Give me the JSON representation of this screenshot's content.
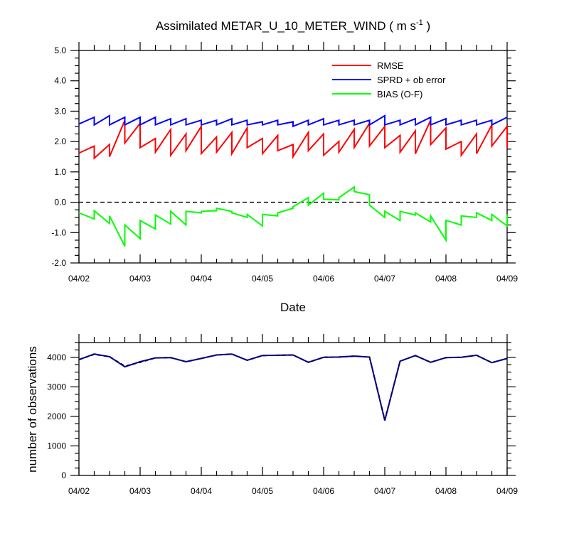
{
  "chart_data": [
    {
      "type": "line",
      "title": "Assimilated METAR_U_10_METER_WIND ( m s",
      "title_sup": "-1",
      "title_end": " )",
      "xlabel": "Date",
      "ylabel": "",
      "x_ticks": [
        "04/02",
        "04/03",
        "04/04",
        "04/05",
        "04/06",
        "04/07",
        "04/08",
        "04/09"
      ],
      "xlim": [
        0,
        7
      ],
      "ylim": [
        -2.0,
        5.0
      ],
      "y_ticks": [
        "-2.0",
        "-1.0",
        "0.0",
        "1.0",
        "2.0",
        "3.0",
        "4.0",
        "5.0"
      ],
      "zero_line": true,
      "legend_position": "top-right",
      "series": [
        {
          "name": "RMSE",
          "color": "#ff0000",
          "points": [
            [
              0,
              1.62
            ],
            [
              0.25,
              1.85
            ],
            [
              0.25,
              1.45
            ],
            [
              0.5,
              1.9
            ],
            [
              0.5,
              1.5
            ],
            [
              0.75,
              2.7
            ],
            [
              0.75,
              1.95
            ],
            [
              1,
              2.6
            ],
            [
              1,
              1.8
            ],
            [
              1.25,
              2.1
            ],
            [
              1.25,
              1.65
            ],
            [
              1.5,
              2.4
            ],
            [
              1.5,
              1.55
            ],
            [
              1.75,
              2.25
            ],
            [
              1.75,
              1.7
            ],
            [
              2,
              2.5
            ],
            [
              2,
              1.6
            ],
            [
              2.25,
              2.15
            ],
            [
              2.25,
              1.65
            ],
            [
              2.5,
              2.3
            ],
            [
              2.5,
              1.6
            ],
            [
              2.75,
              2.45
            ],
            [
              2.75,
              1.8
            ],
            [
              3,
              2.1
            ],
            [
              3,
              1.6
            ],
            [
              3.25,
              2.2
            ],
            [
              3.25,
              1.7
            ],
            [
              3.5,
              1.9
            ],
            [
              3.5,
              1.5
            ],
            [
              3.75,
              2.3
            ],
            [
              3.75,
              1.7
            ],
            [
              4,
              2.25
            ],
            [
              4,
              1.55
            ],
            [
              4.25,
              2.0
            ],
            [
              4.25,
              1.65
            ],
            [
              4.5,
              2.4
            ],
            [
              4.5,
              1.8
            ],
            [
              4.75,
              2.6
            ],
            [
              4.75,
              1.85
            ],
            [
              5,
              2.5
            ],
            [
              5,
              1.8
            ],
            [
              5.25,
              2.2
            ],
            [
              5.25,
              1.65
            ],
            [
              5.5,
              2.35
            ],
            [
              5.5,
              1.6
            ],
            [
              5.75,
              2.7
            ],
            [
              5.75,
              1.9
            ],
            [
              6,
              2.45
            ],
            [
              6,
              1.75
            ],
            [
              6.25,
              2.0
            ],
            [
              6.25,
              1.55
            ],
            [
              6.5,
              2.25
            ],
            [
              6.5,
              1.6
            ],
            [
              6.75,
              2.55
            ],
            [
              6.75,
              1.85
            ],
            [
              7,
              2.5
            ],
            [
              7,
              1.8
            ]
          ]
        },
        {
          "name": "SPRD + ob error",
          "color": "#0000ff",
          "points": [
            [
              0,
              2.58
            ],
            [
              0.25,
              2.8
            ],
            [
              0.25,
              2.55
            ],
            [
              0.5,
              2.85
            ],
            [
              0.5,
              2.55
            ],
            [
              0.75,
              2.8
            ],
            [
              0.75,
              2.55
            ],
            [
              1,
              2.8
            ],
            [
              1,
              2.55
            ],
            [
              1.25,
              2.8
            ],
            [
              1.25,
              2.55
            ],
            [
              1.5,
              2.75
            ],
            [
              1.5,
              2.55
            ],
            [
              1.75,
              2.75
            ],
            [
              1.75,
              2.55
            ],
            [
              2,
              2.7
            ],
            [
              2,
              2.55
            ],
            [
              2.25,
              2.7
            ],
            [
              2.25,
              2.55
            ],
            [
              2.5,
              2.75
            ],
            [
              2.5,
              2.55
            ],
            [
              2.75,
              2.7
            ],
            [
              2.75,
              2.55
            ],
            [
              3,
              2.65
            ],
            [
              3,
              2.55
            ],
            [
              3.25,
              2.7
            ],
            [
              3.25,
              2.55
            ],
            [
              3.5,
              2.65
            ],
            [
              3.5,
              2.5
            ],
            [
              3.75,
              2.7
            ],
            [
              3.75,
              2.55
            ],
            [
              4,
              2.75
            ],
            [
              4,
              2.55
            ],
            [
              4.25,
              2.7
            ],
            [
              4.25,
              2.55
            ],
            [
              4.5,
              2.7
            ],
            [
              4.5,
              2.55
            ],
            [
              4.75,
              2.7
            ],
            [
              4.75,
              2.55
            ],
            [
              5,
              2.85
            ],
            [
              5,
              2.55
            ],
            [
              5.25,
              2.7
            ],
            [
              5.25,
              2.55
            ],
            [
              5.5,
              2.75
            ],
            [
              5.5,
              2.55
            ],
            [
              5.75,
              2.8
            ],
            [
              5.75,
              2.55
            ],
            [
              6,
              2.75
            ],
            [
              6,
              2.55
            ],
            [
              6.25,
              2.7
            ],
            [
              6.25,
              2.55
            ],
            [
              6.5,
              2.7
            ],
            [
              6.5,
              2.55
            ],
            [
              6.75,
              2.7
            ],
            [
              6.75,
              2.55
            ],
            [
              7,
              2.8
            ]
          ]
        },
        {
          "name": "BIAS (O-F)",
          "color": "#00ff00",
          "points": [
            [
              0,
              -0.35
            ],
            [
              0.25,
              -0.55
            ],
            [
              0.25,
              -0.28
            ],
            [
              0.5,
              -0.7
            ],
            [
              0.5,
              -0.45
            ],
            [
              0.75,
              -1.45
            ],
            [
              0.75,
              -0.75
            ],
            [
              1,
              -1.2
            ],
            [
              1,
              -0.6
            ],
            [
              1.25,
              -0.88
            ],
            [
              1.25,
              -0.42
            ],
            [
              1.5,
              -0.72
            ],
            [
              1.5,
              -0.3
            ],
            [
              1.75,
              -0.75
            ],
            [
              1.75,
              -0.3
            ],
            [
              2,
              -0.35
            ],
            [
              2,
              -0.3
            ],
            [
              2.25,
              -0.28
            ],
            [
              2.25,
              -0.2
            ],
            [
              2.5,
              -0.3
            ],
            [
              2.5,
              -0.35
            ],
            [
              2.75,
              -0.5
            ],
            [
              2.75,
              -0.4
            ],
            [
              3,
              -0.78
            ],
            [
              3,
              -0.4
            ],
            [
              3.25,
              -0.45
            ],
            [
              3.25,
              -0.35
            ],
            [
              3.5,
              -0.2
            ],
            [
              3.5,
              -0.15
            ],
            [
              3.75,
              0.15
            ],
            [
              3.75,
              -0.1
            ],
            [
              4,
              0.3
            ],
            [
              4,
              0.1
            ],
            [
              4.25,
              0.08
            ],
            [
              4.25,
              0.15
            ],
            [
              4.5,
              0.5
            ],
            [
              4.5,
              0.35
            ],
            [
              4.75,
              0.25
            ],
            [
              4.75,
              -0.1
            ],
            [
              5,
              -0.5
            ],
            [
              5,
              -0.3
            ],
            [
              5.25,
              -0.6
            ],
            [
              5.25,
              -0.3
            ],
            [
              5.5,
              -0.42
            ],
            [
              5.5,
              -0.35
            ],
            [
              5.75,
              -0.65
            ],
            [
              5.75,
              -0.45
            ],
            [
              6,
              -1.25
            ],
            [
              6,
              -0.6
            ],
            [
              6.25,
              -0.75
            ],
            [
              6.25,
              -0.45
            ],
            [
              6.5,
              -0.5
            ],
            [
              6.5,
              -0.35
            ],
            [
              6.75,
              -0.6
            ],
            [
              6.75,
              -0.4
            ],
            [
              7,
              -0.78
            ],
            [
              7,
              -0.4
            ]
          ]
        }
      ]
    },
    {
      "type": "line",
      "title": "",
      "xlabel": "",
      "ylabel": "number of observations",
      "x_ticks": [
        "04/02",
        "04/03",
        "04/04",
        "04/05",
        "04/06",
        "04/07",
        "04/08",
        "04/09"
      ],
      "xlim": [
        0,
        7
      ],
      "ylim": [
        0,
        4500
      ],
      "y_ticks": [
        "0",
        "1000",
        "2000",
        "3000",
        "4000"
      ],
      "series": [
        {
          "name": "",
          "color": "#000000",
          "dashed": true,
          "points": [
            [
              0,
              3920
            ],
            [
              0.25,
              4100
            ],
            [
              0.5,
              4020
            ],
            [
              0.75,
              3700
            ],
            [
              1,
              3830
            ],
            [
              1.25,
              3980
            ],
            [
              1.5,
              3990
            ],
            [
              1.75,
              3850
            ],
            [
              2,
              3960
            ],
            [
              2.25,
              4080
            ],
            [
              2.5,
              4110
            ],
            [
              2.75,
              3900
            ],
            [
              3,
              4060
            ],
            [
              3.25,
              4070
            ],
            [
              3.5,
              4080
            ],
            [
              3.75,
              3830
            ],
            [
              4,
              4000
            ],
            [
              4.25,
              4010
            ],
            [
              4.5,
              4040
            ],
            [
              4.75,
              4010
            ],
            [
              5,
              1880
            ],
            [
              5.25,
              3870
            ],
            [
              5.5,
              4060
            ],
            [
              5.75,
              3830
            ],
            [
              6,
              3990
            ],
            [
              6.25,
              4000
            ],
            [
              6.5,
              4070
            ],
            [
              6.75,
              3820
            ],
            [
              7,
              3960
            ]
          ]
        },
        {
          "name": "",
          "color": "#000080",
          "dashed": false,
          "points": [
            [
              0,
              3920
            ],
            [
              0.25,
              4110
            ],
            [
              0.5,
              4020
            ],
            [
              0.75,
              3680
            ],
            [
              1,
              3850
            ],
            [
              1.25,
              3980
            ],
            [
              1.5,
              3990
            ],
            [
              1.75,
              3850
            ],
            [
              2,
              3960
            ],
            [
              2.25,
              4080
            ],
            [
              2.5,
              4110
            ],
            [
              2.75,
              3900
            ],
            [
              3,
              4060
            ],
            [
              3.25,
              4070
            ],
            [
              3.5,
              4080
            ],
            [
              3.75,
              3830
            ],
            [
              4,
              4000
            ],
            [
              4.25,
              4010
            ],
            [
              4.5,
              4040
            ],
            [
              4.75,
              4010
            ],
            [
              5,
              1860
            ],
            [
              5.25,
              3870
            ],
            [
              5.5,
              4060
            ],
            [
              5.75,
              3830
            ],
            [
              6,
              3990
            ],
            [
              6.25,
              4000
            ],
            [
              6.5,
              4070
            ],
            [
              6.75,
              3820
            ],
            [
              7,
              3960
            ]
          ]
        }
      ]
    }
  ]
}
